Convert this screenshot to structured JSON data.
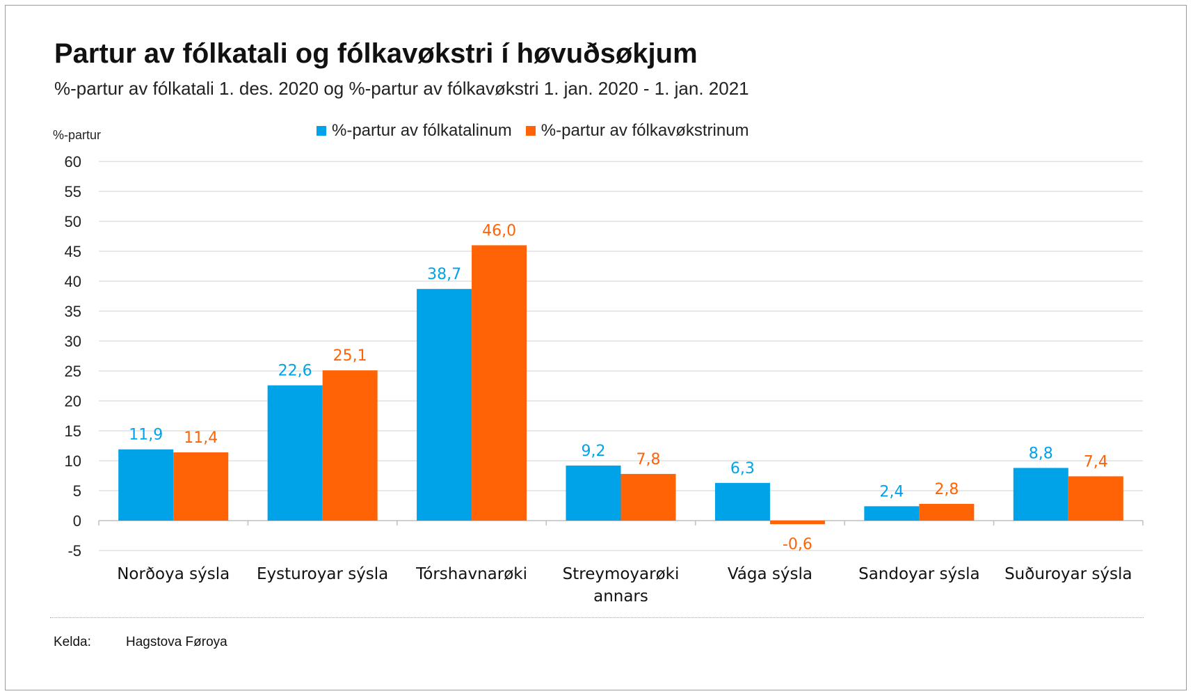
{
  "chart_data": {
    "type": "bar",
    "title": "Partur av fólkatali og fólkavøkstri í høvuðsøkjum",
    "subtitle": "%-partur av fólkatali 1. des. 2020 og %-partur av fólkavøkstri 1. jan. 2020 - 1. jan. 2021",
    "ylabel": "%-partur",
    "xlabel": "",
    "ylim": [
      -5,
      60
    ],
    "yticks": [
      -5,
      0,
      5,
      10,
      15,
      20,
      25,
      30,
      35,
      40,
      45,
      50,
      55,
      60
    ],
    "grid": true,
    "legend_position": "top",
    "categories": [
      [
        "Norðoya sýsla"
      ],
      [
        "Eysturoyar sýsla"
      ],
      [
        "Tórshavnarøki"
      ],
      [
        "Streymoyarøki",
        "annars"
      ],
      [
        "Vága sýsla"
      ],
      [
        "Sandoyar sýsla"
      ],
      [
        "Suðuroyar sýsla"
      ]
    ],
    "series": [
      {
        "name": "%-partur av fólkatalinum",
        "color": "#00a2e8",
        "values": [
          11.9,
          22.6,
          38.7,
          9.2,
          6.3,
          2.4,
          8.8
        ],
        "labels": [
          "11,9",
          "22,6",
          "38,7",
          "9,2",
          "6,3",
          "2,4",
          "8,8"
        ]
      },
      {
        "name": "%-partur av fólkavøkstrinum",
        "color": "#ff6305",
        "values": [
          11.4,
          25.1,
          46.0,
          7.8,
          -0.6,
          2.8,
          7.4
        ],
        "labels": [
          "11,4",
          "25,1",
          "46,0",
          "7,8",
          "-0,6",
          "2,8",
          "7,4"
        ]
      }
    ]
  },
  "footer": {
    "source_label": "Kelda:",
    "source_value": "Hagstova Føroya"
  }
}
